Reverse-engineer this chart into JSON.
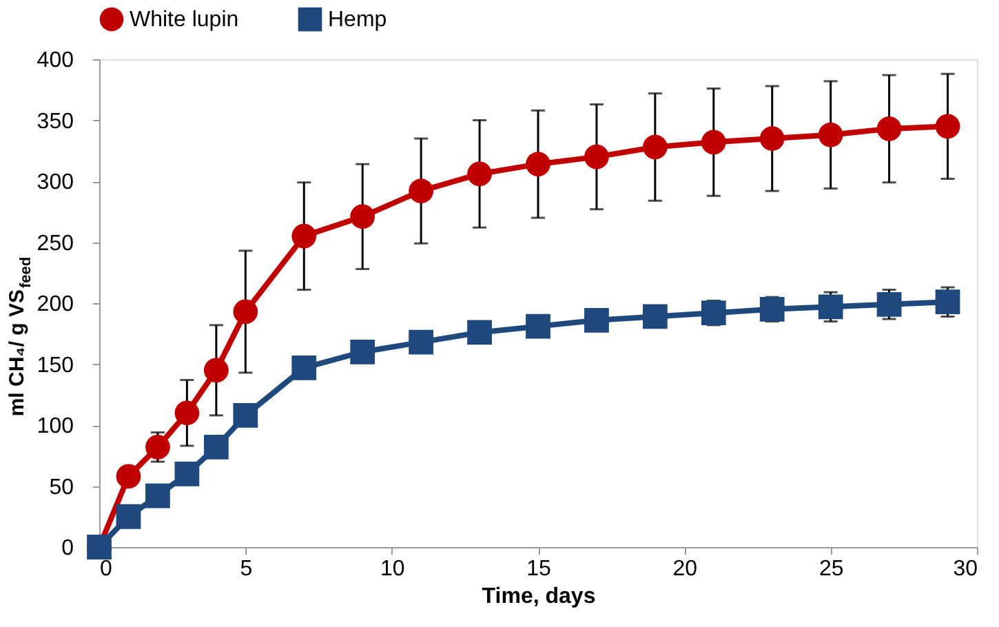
{
  "chart_data": {
    "type": "line",
    "xlabel": "Time, days",
    "ylabel": "ml CH₄/ g VS$_{feed}$",
    "x": [
      0,
      1,
      2,
      3,
      4,
      5,
      7,
      9,
      11,
      13,
      15,
      17,
      19,
      21,
      23,
      25,
      27,
      29
    ],
    "series": [
      {
        "name": "White lupin",
        "color": "#c00000",
        "marker": "circle",
        "values": [
          0,
          58,
          82,
          110,
          145,
          193,
          255,
          271,
          292,
          306,
          314,
          320,
          328,
          332,
          335,
          338,
          343,
          345
        ],
        "errors": [
          null,
          null,
          12,
          27,
          37,
          50,
          44,
          43,
          43,
          44,
          44,
          43,
          44,
          44,
          43,
          44,
          44,
          43
        ]
      },
      {
        "name": "Hemp",
        "color": "#1f497d",
        "marker": "square",
        "values": [
          0,
          25,
          42,
          60,
          82,
          108,
          147,
          160,
          168,
          176,
          181,
          186,
          189,
          192,
          195,
          197,
          199,
          201
        ],
        "errors": [
          null,
          null,
          null,
          null,
          null,
          null,
          null,
          null,
          null,
          null,
          null,
          null,
          null,
          10,
          10,
          12,
          12,
          12
        ]
      }
    ],
    "xlim": [
      0,
      30
    ],
    "xticks": [
      0,
      5,
      10,
      15,
      20,
      25,
      30
    ],
    "ylim": [
      0,
      400
    ],
    "yticks": [
      0,
      50,
      100,
      150,
      200,
      250,
      300,
      350,
      400
    ],
    "grid": false,
    "legend": "top",
    "line_style": "solid"
  }
}
